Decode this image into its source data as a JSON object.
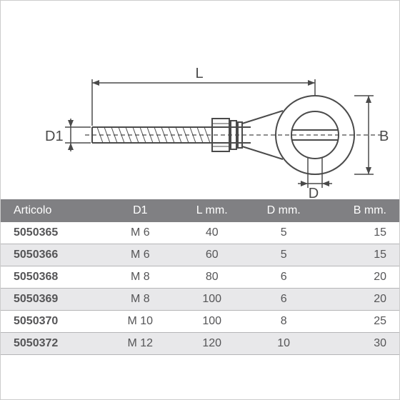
{
  "diagram": {
    "labels": {
      "L": "L",
      "D1": "D1",
      "D": "D",
      "B": "B"
    },
    "line_color": "#4a4a4a",
    "line_width": 2
  },
  "table": {
    "header_bg": "#808083",
    "header_color": "#ffffff",
    "row_even_bg": "#ffffff",
    "row_odd_bg": "#e8e8ea",
    "border_color": "#b5b5b7",
    "text_color": "#555557",
    "columns": [
      "Articolo",
      "D1",
      "L mm.",
      "D mm.",
      "B mm."
    ],
    "rows": [
      [
        "5050365",
        "M 6",
        "40",
        "5",
        "15"
      ],
      [
        "5050366",
        "M 6",
        "60",
        "5",
        "15"
      ],
      [
        "5050368",
        "M 8",
        "80",
        "6",
        "20"
      ],
      [
        "5050369",
        "M 8",
        "100",
        "6",
        "20"
      ],
      [
        "5050370",
        "M 10",
        "100",
        "8",
        "25"
      ],
      [
        "5050372",
        "M 12",
        "120",
        "10",
        "30"
      ]
    ],
    "col_widths": [
      "26%",
      "18%",
      "18%",
      "18%",
      "20%"
    ]
  }
}
